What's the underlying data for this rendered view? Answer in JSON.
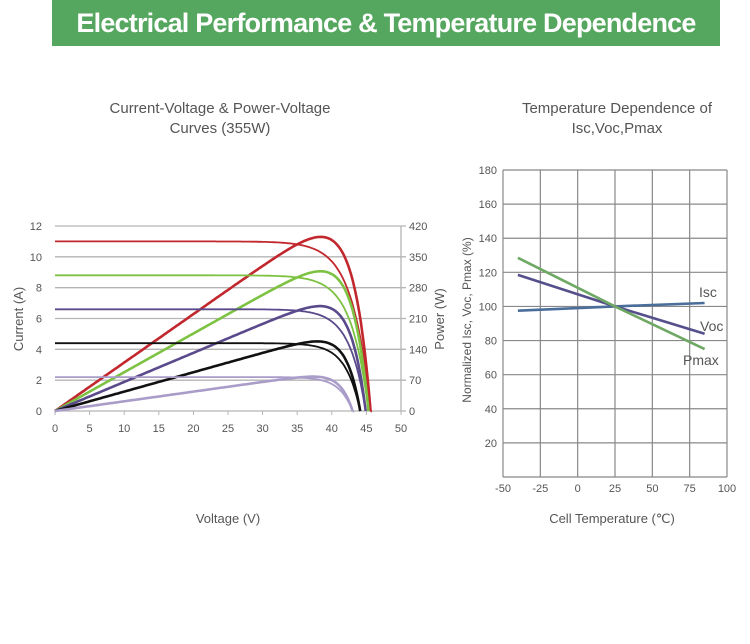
{
  "header": {
    "title": "Electrical Performance & Temperature Dependence"
  },
  "chart_data": [
    {
      "type": "line",
      "title": "Current-Voltage & Power-Voltage Curves (355W)",
      "title_lines": [
        "Current-Voltage & Power-Voltage",
        "Curves (355W)"
      ],
      "xlabel": "Voltage (V)",
      "ylabel": "Current (A)",
      "y2label": "Power (W)",
      "xlim": [
        0,
        50
      ],
      "ylim": [
        0,
        12
      ],
      "y2lim": [
        0,
        420
      ],
      "xticks": [
        "0",
        "5",
        "10",
        "15",
        "20",
        "25",
        "30",
        "35",
        "40",
        "45",
        "50"
      ],
      "yticks": [
        "0",
        "2",
        "4",
        "6",
        "8",
        "10",
        "12"
      ],
      "y2ticks": [
        "0",
        "70",
        "140",
        "210",
        "280",
        "350",
        "420"
      ],
      "grid": "horizontal",
      "series": [
        {
          "isc": 11.0,
          "voc": 45.6,
          "pmax": 395,
          "vmp": 38,
          "color": "#c1272d"
        },
        {
          "isc": 8.8,
          "voc": 45.3,
          "pmax": 317,
          "vmp": 38,
          "color": "#7dc242"
        },
        {
          "isc": 6.6,
          "voc": 44.9,
          "pmax": 238,
          "vmp": 38,
          "color": "#5a4a8c"
        },
        {
          "isc": 4.4,
          "voc": 44.1,
          "pmax": 158,
          "vmp": 38,
          "color": "#111111"
        },
        {
          "isc": 2.2,
          "voc": 43.0,
          "pmax": 78,
          "vmp": 37,
          "color": "#a99cc9"
        }
      ]
    },
    {
      "type": "line",
      "title": "Temperature Dependence of Isc,Voc,Pmax",
      "title_lines": [
        "Temperature Dependence of",
        "Isc,Voc,Pmax"
      ],
      "xlabel": "Cell Temperature (℃)",
      "ylabel": "Normalized Isc, Voc, Pmax (%)",
      "xlim": [
        -50,
        100
      ],
      "ylim": [
        0,
        180
      ],
      "xticks": [
        "-50",
        "-25",
        "0",
        "25",
        "50",
        "75",
        "100"
      ],
      "yticks": [
        "20",
        "40",
        "60",
        "80",
        "100",
        "120",
        "140",
        "160",
        "180"
      ],
      "grid": "both",
      "series": [
        {
          "name": "Isc",
          "x": [
            -40,
            25,
            85
          ],
          "y": [
            97.5,
            100,
            102
          ],
          "color": "#4a6e9a"
        },
        {
          "name": "Voc",
          "x": [
            -40,
            25,
            85
          ],
          "y": [
            118.5,
            100,
            84
          ],
          "color": "#55508c"
        },
        {
          "name": "Pmax",
          "x": [
            -40,
            25,
            85
          ],
          "y": [
            128.5,
            100,
            75
          ],
          "color": "#6fa865"
        }
      ]
    }
  ]
}
